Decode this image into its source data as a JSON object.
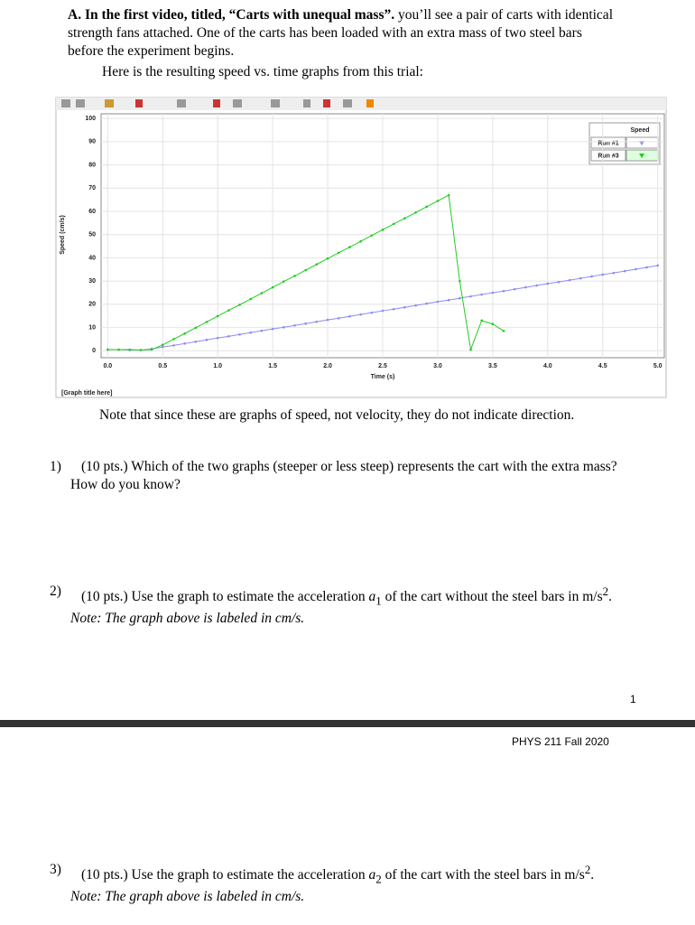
{
  "section_a": {
    "heading": "A. In the first video, titled, “Carts with unequal mass”.",
    "body": " you’ll see a pair of carts with identical strength fans attached. One of the carts has been loaded with an extra mass of two steel bars before the experiment begins.",
    "intro": "Here is the resulting speed vs. time graphs from this trial:"
  },
  "chart_data": {
    "type": "line",
    "title": "[Graph title here]",
    "x_label": "Time (s)",
    "y_label": "Speed (cm/s)",
    "legend_title": "Speed",
    "legend": "upper right",
    "grid": true,
    "x": [
      0,
      0.1,
      0.2,
      0.3,
      0.4,
      0.5,
      0.6,
      0.7,
      0.8,
      0.9,
      1.0,
      1.1,
      1.2,
      1.3,
      1.4,
      1.5,
      1.6,
      1.7,
      1.8,
      1.9,
      2.0,
      2.1,
      2.2,
      2.3,
      2.4,
      2.5,
      2.6,
      2.7,
      2.8,
      2.9,
      3.0,
      3.1,
      3.2,
      3.3,
      3.4,
      3.5,
      3.6,
      3.7,
      3.8,
      3.9,
      4.0,
      4.1,
      4.2,
      4.3,
      4.4,
      4.5,
      4.6,
      4.7,
      4.8,
      4.9,
      5.0
    ],
    "series": [
      {
        "name": "Run #1",
        "color": "#8c8cf0",
        "values": [
          0.5,
          0.5,
          0.3,
          0.3,
          0.8,
          1.6,
          2.3,
          3.1,
          3.9,
          4.7,
          5.5,
          6.2,
          7.0,
          7.8,
          8.6,
          9.4,
          10.1,
          10.9,
          11.7,
          12.5,
          13.3,
          14.0,
          14.8,
          15.6,
          16.4,
          17.2,
          17.9,
          18.7,
          19.5,
          20.3,
          21.1,
          21.8,
          22.6,
          23.4,
          24.2,
          25.0,
          25.7,
          26.5,
          27.3,
          28.1,
          28.9,
          29.6,
          30.4,
          31.2,
          32.0,
          32.8,
          33.5,
          34.3,
          35.1,
          35.9,
          36.7
        ]
      },
      {
        "name": "Run #3",
        "color": "#22cc22",
        "values": [
          0.5,
          0.5,
          0.5,
          0.3,
          0.5,
          2.5,
          5.0,
          7.4,
          9.9,
          12.4,
          14.9,
          17.4,
          19.8,
          22.3,
          24.8,
          27.3,
          29.8,
          32.2,
          34.7,
          37.2,
          39.7,
          42.2,
          44.6,
          47.1,
          49.6,
          52.1,
          54.6,
          57.0,
          59.5,
          62.0,
          64.5,
          67.0,
          30,
          0.5,
          13,
          11.5,
          8.5,
          null,
          null,
          null,
          null,
          null,
          null,
          null,
          null,
          null,
          null,
          null,
          null,
          null,
          null
        ]
      }
    ],
    "xlim": [
      -0.06,
      5.06
    ],
    "ylim": [
      -3,
      102
    ],
    "xticks": [
      {
        "value": 0,
        "label": "0.0"
      },
      0.5,
      {
        "value": 1,
        "label": "1.0"
      },
      1.5,
      {
        "value": 2,
        "label": "2.0"
      },
      2.5,
      {
        "value": 3,
        "label": "3.0"
      },
      3.5,
      {
        "value": 4,
        "label": "4.0"
      },
      4.5,
      {
        "value": 5,
        "label": "5.0"
      }
    ],
    "yticks": [
      0,
      10,
      20,
      30,
      40,
      50,
      60,
      70,
      80,
      90,
      100
    ]
  },
  "note": "Note that since these are graphs of speed, not velocity, they do not indicate direction.",
  "questions": [
    {
      "number": "1)",
      "text": "(10 pts.) Which of the two graphs (steeper or less steep) represents the cart with the extra mass? How do you know?"
    },
    {
      "number": "2)",
      "lead": "(10 pts.) Use the graph to estimate the acceleration ",
      "var": "a",
      "sub": "1",
      "mid": " of the cart without the steel bars in m/s",
      "sup": "2",
      "end": ". ",
      "note": "Note: The graph above is labeled in cm/s."
    },
    {
      "number": "3)",
      "lead": "(10 pts.) Use the graph to estimate the acceleration ",
      "var": "a",
      "sub": "2",
      "mid": " of the cart with the steel bars in m/s",
      "sup": "2",
      "end": ".",
      "note": "Note: The graph above is labeled in cm/s."
    }
  ],
  "page_number": "1",
  "footer": "PHYS 211 Fall 2020"
}
